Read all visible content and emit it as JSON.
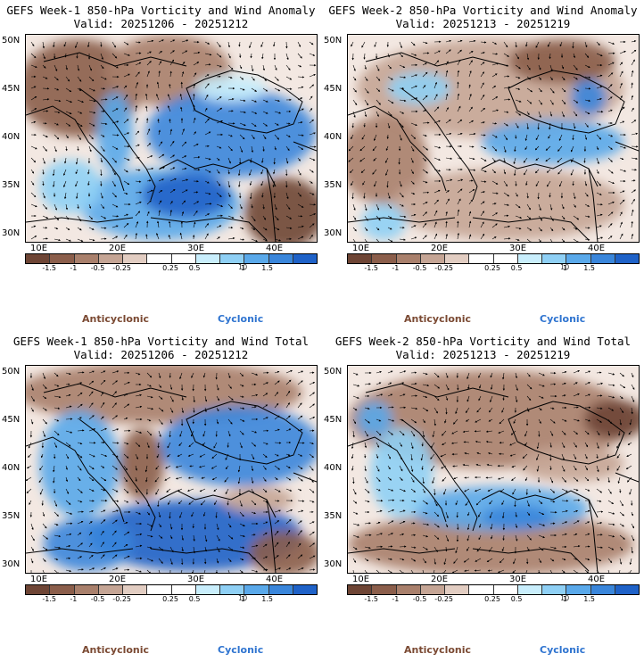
{
  "panels": [
    {
      "title_line1": "GEFS Week-1 850-hPa Vorticity and Wind Anomaly",
      "title_line2": "Valid: 20251206 - 20251212"
    },
    {
      "title_line1": "GEFS Week-2 850-hPa Vorticity and Wind Anomaly",
      "title_line2": "Valid: 20251213 - 20251219"
    },
    {
      "title_line1": "GEFS Week-1 850-hPa Vorticity and Wind Total",
      "title_line2": "Valid: 20251206 - 20251212"
    },
    {
      "title_line1": "GEFS Week-2 850-hPa Vorticity and Wind Total",
      "title_line2": "Valid: 20251213 - 20251219"
    }
  ],
  "lat_labels": [
    "50N",
    "45N",
    "40N",
    "35N",
    "30N"
  ],
  "lon_labels": [
    "10E",
    "20E",
    "30E",
    "40E"
  ],
  "colorbar": {
    "ticks": [
      "-1.5",
      "-1",
      "-0.5",
      "-0.25",
      "0.25",
      "0.5",
      "1",
      "1.5"
    ],
    "scale_label": "10",
    "colors": [
      "#6e4535",
      "#8b5e4b",
      "#a9806c",
      "#c5a595",
      "#e2cdc2",
      "#ffffff",
      "#ffffff",
      "#c9eefc",
      "#8fd0f5",
      "#5aa9ea",
      "#3a86db",
      "#1f62c8"
    ]
  },
  "legend": {
    "negative": "Anticyclonic",
    "positive": "Cyclonic"
  },
  "palette": {
    "anticyclonic": "#7b4a33",
    "cyclonic": "#2f74d0",
    "land_light": "#f6f1ec"
  }
}
